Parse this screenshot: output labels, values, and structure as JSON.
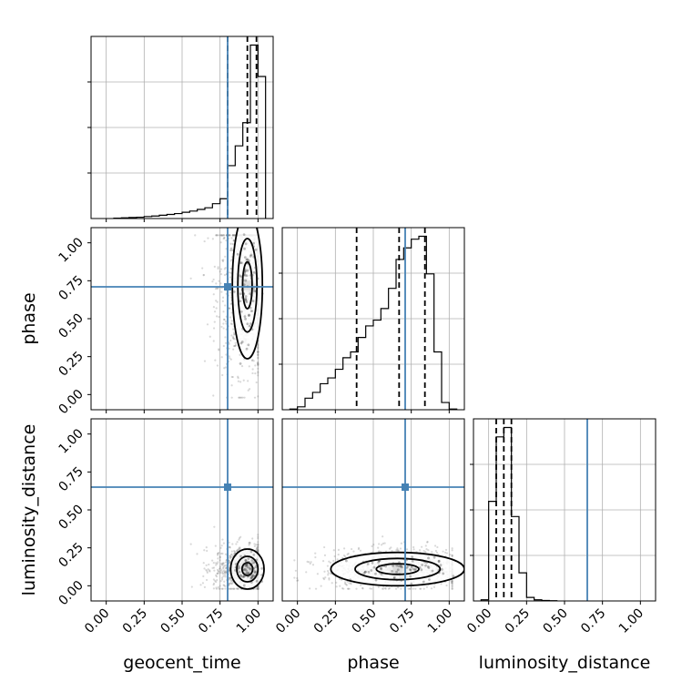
{
  "chart_data": {
    "type": "corner",
    "parameters": [
      "geocent_time",
      "phase",
      "luminosity_distance"
    ],
    "axis_range": [
      -0.1,
      1.1
    ],
    "ticks": [
      0.0,
      0.25,
      0.5,
      0.75,
      1.0
    ],
    "tick_labels": [
      "0.00",
      "0.25",
      "0.50",
      "0.75",
      "1.00"
    ],
    "grid": true,
    "colors": {
      "truth": "#4682b4",
      "hist": "#000000",
      "contour": "#000000",
      "quantile": "#000000"
    },
    "truths": {
      "geocent_time": 0.8,
      "phase": 0.71,
      "luminosity_distance": 0.65
    },
    "histograms": {
      "geocent_time": {
        "quantiles": [
          0.8,
          0.93,
          0.99
        ],
        "bin_edges": [
          0.05,
          0.1,
          0.15,
          0.2,
          0.25,
          0.3,
          0.35,
          0.4,
          0.45,
          0.5,
          0.55,
          0.6,
          0.65,
          0.7,
          0.75,
          0.8,
          0.85,
          0.9,
          0.95,
          1.0,
          1.05
        ],
        "counts": [
          0.2,
          0.4,
          0.6,
          0.8,
          1.2,
          1.5,
          2.0,
          2.5,
          3.0,
          3.8,
          4.5,
          5.5,
          6.5,
          9,
          12,
          32,
          44,
          58,
          105,
          86
        ]
      },
      "phase": {
        "quantiles": [
          0.39,
          0.67,
          0.84
        ],
        "bin_edges": [
          -0.05,
          0.0,
          0.05,
          0.1,
          0.15,
          0.2,
          0.25,
          0.3,
          0.35,
          0.4,
          0.45,
          0.5,
          0.55,
          0.6,
          0.65,
          0.7,
          0.75,
          0.8,
          0.85,
          0.9,
          0.95,
          1.0,
          1.05
        ],
        "counts": [
          0.5,
          2,
          8,
          12,
          18,
          22,
          28,
          36,
          40,
          50,
          58,
          62,
          70,
          84,
          104,
          112,
          118,
          120,
          94,
          40,
          5,
          0.5
        ]
      },
      "luminosity_distance": {
        "quantiles": [
          0.05,
          0.1,
          0.15
        ],
        "bin_edges": [
          -0.05,
          0.0,
          0.05,
          0.1,
          0.15,
          0.2,
          0.25,
          0.3,
          0.35,
          0.4,
          0.45
        ],
        "counts": [
          1,
          85,
          140,
          148,
          72,
          24,
          3,
          1,
          0.4,
          0.2
        ]
      }
    },
    "scatter_2d": [
      {
        "x": "geocent_time",
        "y": "phase",
        "cx": 0.93,
        "cy": 0.72,
        "sx": 0.045,
        "sy": 0.22
      },
      {
        "x": "geocent_time",
        "y": "luminosity_distance",
        "cx": 0.93,
        "cy": 0.11,
        "sx": 0.05,
        "sy": 0.06
      },
      {
        "x": "phase",
        "y": "luminosity_distance",
        "cx": 0.66,
        "cy": 0.11,
        "sx": 0.2,
        "sy": 0.05
      }
    ]
  }
}
